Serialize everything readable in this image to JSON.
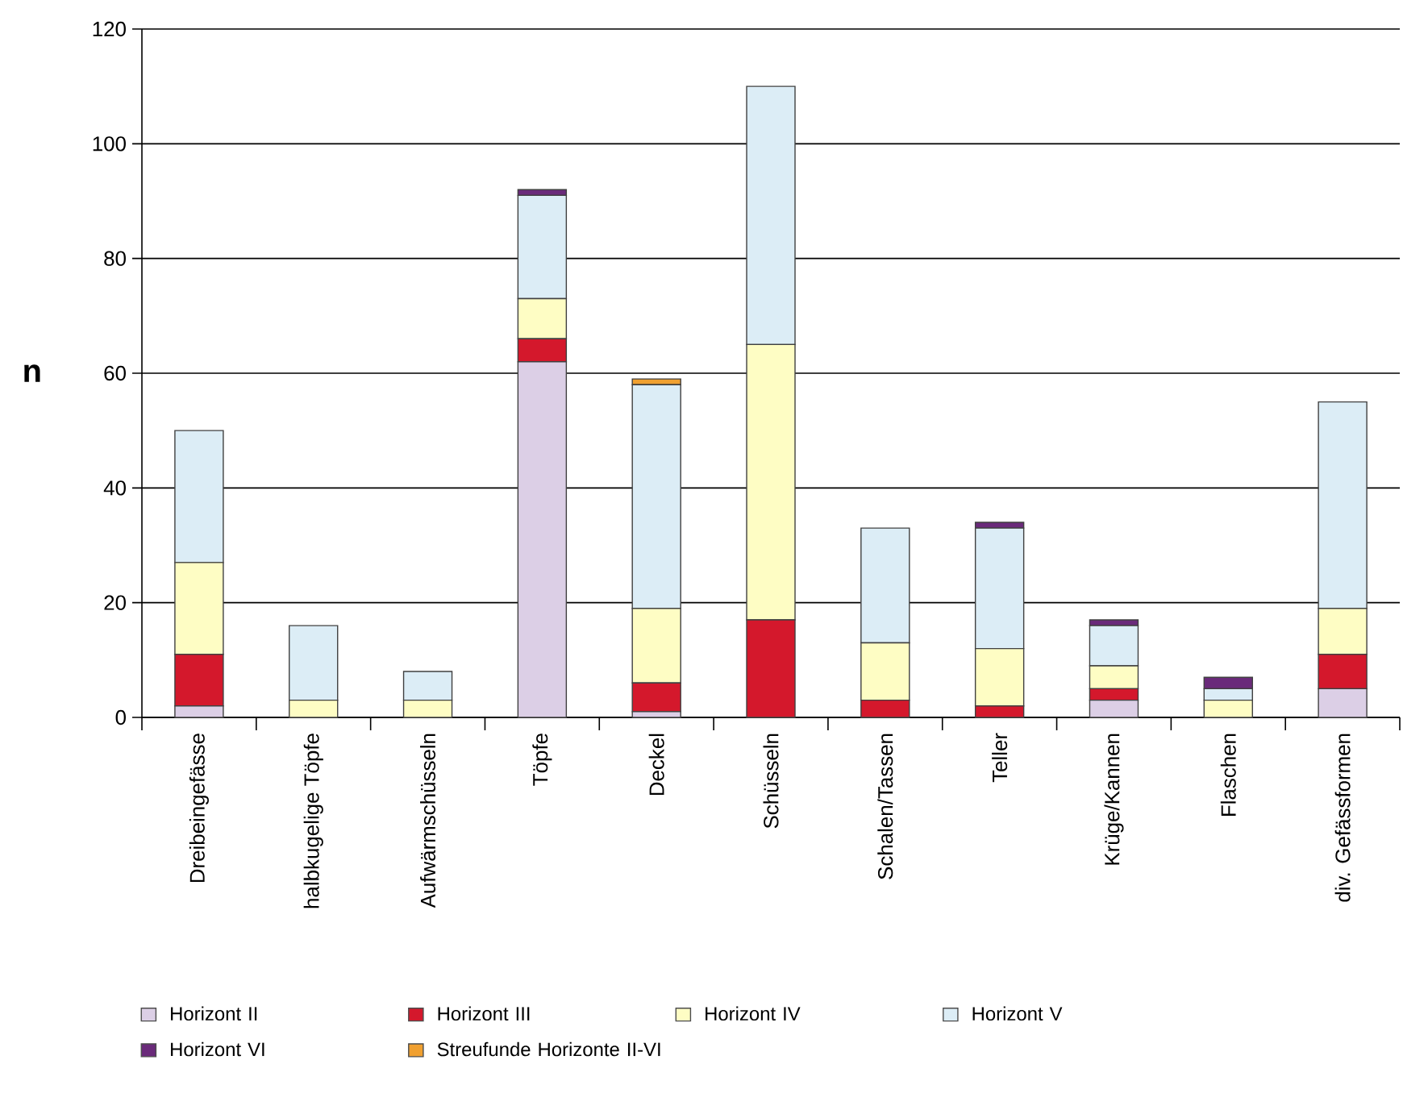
{
  "chart_data": {
    "type": "bar",
    "stacked": true,
    "ylabel": "n",
    "ylim": [
      0,
      120
    ],
    "yticks": [
      0,
      20,
      40,
      60,
      80,
      100,
      120
    ],
    "grid": "y",
    "legend": "bottom",
    "categories": [
      "Dreibeingefässe",
      "halbkugelige Töpfe",
      "Aufwärmschüsseln",
      "Töpfe",
      "Deckel",
      "Schüsseln",
      "Schalen/Tassen",
      "Teller",
      "Krüge/Kannen",
      "Flaschen",
      "div. Gefässformen"
    ],
    "series": [
      {
        "name": "Horizont II",
        "color": "#dccfe6",
        "values": [
          2,
          0,
          0,
          62,
          1,
          0,
          0,
          0,
          3,
          0,
          5
        ]
      },
      {
        "name": "Horizont III",
        "color": "#d4182c",
        "values": [
          9,
          0,
          0,
          4,
          5,
          17,
          3,
          2,
          2,
          0,
          6
        ]
      },
      {
        "name": "Horizont IV",
        "color": "#fefdc4",
        "values": [
          16,
          3,
          3,
          7,
          13,
          48,
          10,
          10,
          4,
          3,
          8
        ]
      },
      {
        "name": "Horizont V",
        "color": "#dcedf6",
        "values": [
          23,
          13,
          5,
          18,
          39,
          45,
          20,
          21,
          7,
          2,
          36
        ]
      },
      {
        "name": "Horizont VI",
        "color": "#6a2a7a",
        "values": [
          0,
          0,
          0,
          1,
          0,
          0,
          0,
          1,
          1,
          2,
          0
        ]
      },
      {
        "name": "Streufunde Horizonte II-VI",
        "color": "#f0a030",
        "values": [
          0,
          0,
          0,
          0,
          1,
          0,
          0,
          0,
          0,
          0,
          0
        ]
      }
    ]
  }
}
